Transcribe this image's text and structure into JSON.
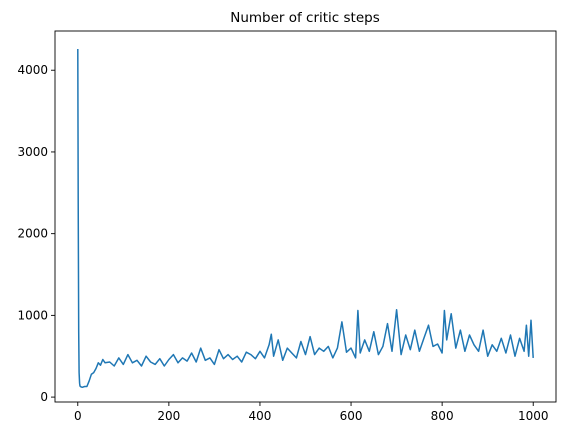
{
  "chart_data": {
    "type": "line",
    "title": "Number of critic steps",
    "xlabel": "",
    "ylabel": "",
    "xlim": [
      -50,
      1050
    ],
    "ylim": [
      -60,
      4480
    ],
    "xticks": [
      0,
      200,
      400,
      600,
      800,
      1000
    ],
    "yticks": [
      0,
      1000,
      2000,
      3000,
      4000
    ],
    "grid": false,
    "legend": "none",
    "colors": {
      "series": "#1f77b4"
    },
    "series": [
      {
        "x": [
          0,
          1,
          2,
          3,
          4,
          5,
          7,
          10,
          15,
          20,
          25,
          30,
          35,
          40,
          45,
          50,
          55,
          60,
          70,
          80,
          90,
          100,
          110,
          120,
          130,
          140,
          150,
          160,
          170,
          180,
          190,
          200,
          210,
          220,
          230,
          240,
          250,
          260,
          270,
          280,
          290,
          300,
          310,
          320,
          330,
          340,
          350,
          360,
          370,
          380,
          390,
          400,
          410,
          420,
          425,
          430,
          440,
          450,
          460,
          470,
          480,
          490,
          500,
          510,
          520,
          530,
          540,
          550,
          560,
          570,
          580,
          590,
          600,
          610,
          615,
          620,
          630,
          640,
          650,
          660,
          670,
          680,
          690,
          700,
          710,
          720,
          730,
          740,
          750,
          760,
          770,
          780,
          790,
          800,
          805,
          810,
          820,
          830,
          840,
          850,
          860,
          870,
          880,
          890,
          900,
          910,
          920,
          930,
          940,
          950,
          960,
          970,
          980,
          985,
          990,
          995,
          1000
        ],
        "y": [
          4260,
          2400,
          800,
          300,
          170,
          135,
          125,
          120,
          130,
          130,
          200,
          280,
          300,
          350,
          420,
          390,
          460,
          420,
          430,
          380,
          480,
          400,
          520,
          420,
          450,
          380,
          500,
          430,
          400,
          470,
          380,
          460,
          520,
          420,
          480,
          440,
          540,
          430,
          600,
          450,
          480,
          400,
          580,
          470,
          520,
          460,
          500,
          430,
          550,
          520,
          470,
          560,
          480,
          640,
          770,
          500,
          700,
          450,
          600,
          540,
          480,
          680,
          520,
          740,
          520,
          600,
          560,
          620,
          480,
          600,
          920,
          550,
          600,
          480,
          1060,
          540,
          700,
          560,
          800,
          520,
          620,
          900,
          560,
          1070,
          520,
          760,
          580,
          820,
          560,
          720,
          880,
          620,
          650,
          540,
          1060,
          700,
          1020,
          600,
          820,
          560,
          760,
          640,
          560,
          820,
          500,
          640,
          560,
          720,
          540,
          760,
          500,
          720,
          560,
          880,
          500,
          940,
          480
        ]
      }
    ]
  }
}
